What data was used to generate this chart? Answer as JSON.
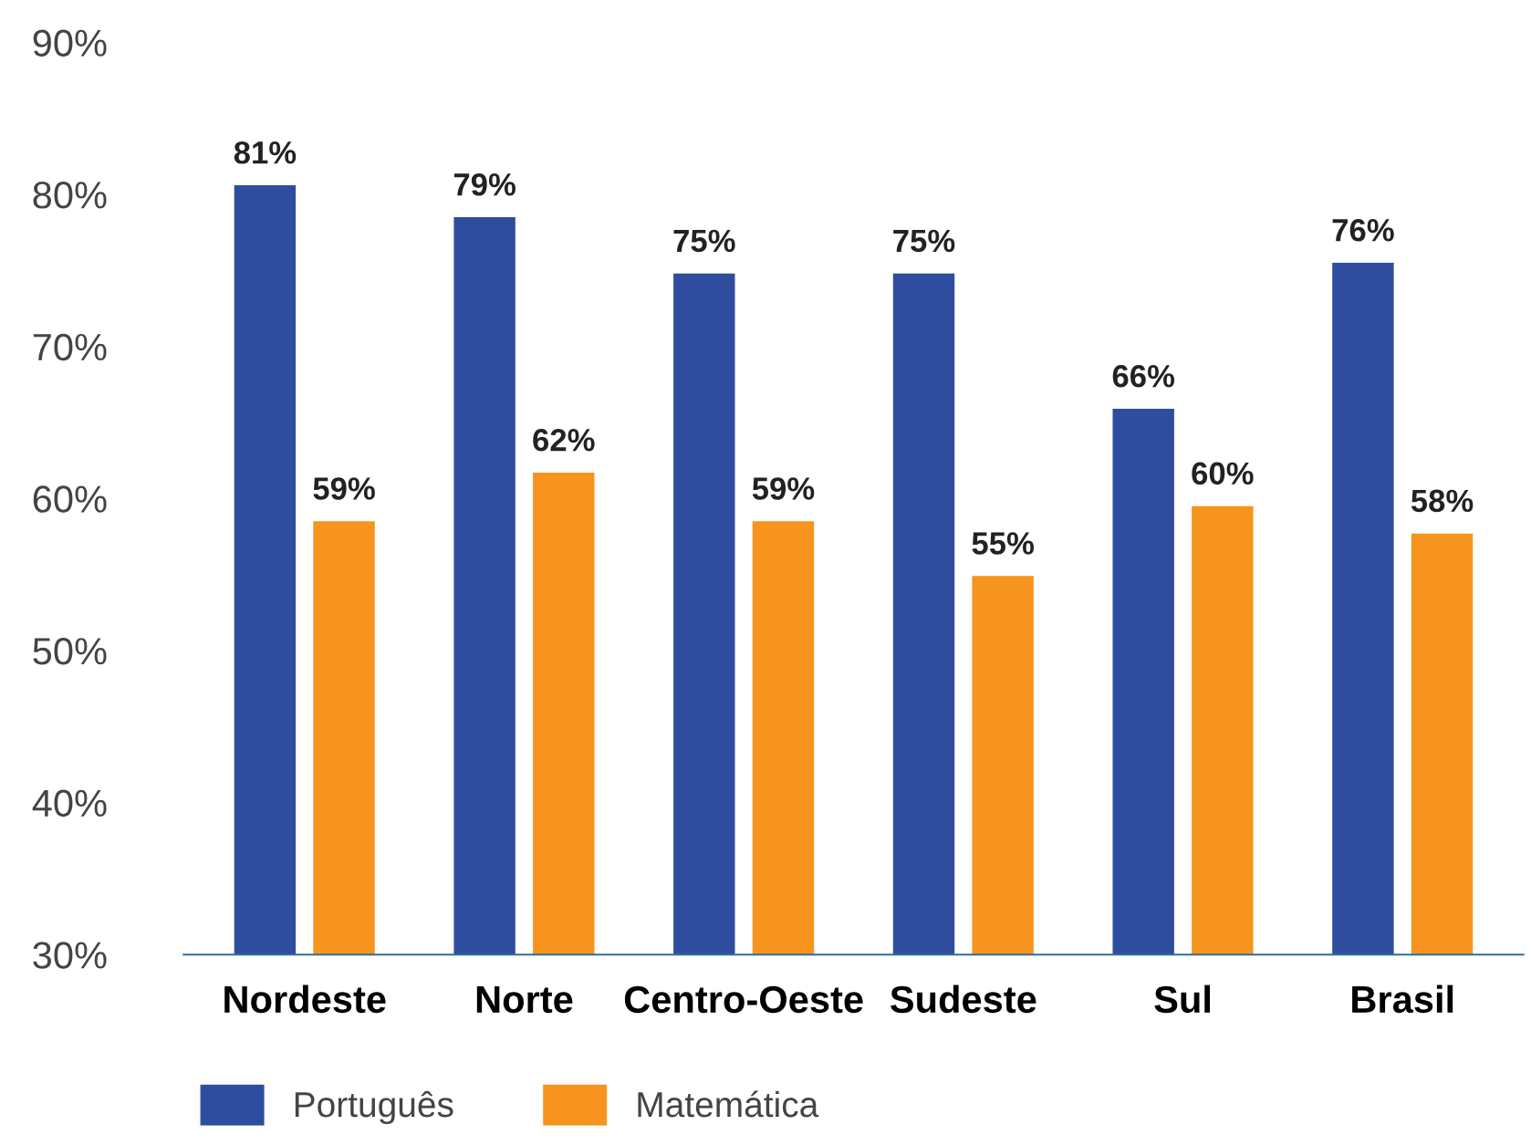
{
  "chart_data": {
    "type": "bar",
    "categories": [
      "Nordeste",
      "Norte",
      "Centro-Oeste",
      "Sudeste",
      "Sul",
      "Brasil"
    ],
    "series": [
      {
        "name": "Português",
        "color": "#2f4d9e",
        "values": [
          80.6,
          78.5,
          74.8,
          74.8,
          65.9,
          75.5
        ],
        "value_labels": [
          "81%",
          "79%",
          "75%",
          "75%",
          "66%",
          "76%"
        ]
      },
      {
        "name": "Matemática",
        "color": "#f7941d",
        "values": [
          58.5,
          61.7,
          58.5,
          54.9,
          59.5,
          57.7
        ],
        "value_labels": [
          "59%",
          "62%",
          "59%",
          "55%",
          "60%",
          "58%"
        ]
      }
    ],
    "ylim": [
      30,
      90
    ],
    "yticks": [
      {
        "value": 30,
        "label": "30%"
      },
      {
        "value": 40,
        "label": "40%"
      },
      {
        "value": 50,
        "label": "50%"
      },
      {
        "value": 60,
        "label": "60%"
      },
      {
        "value": 70,
        "label": "70%"
      },
      {
        "value": 80,
        "label": "80%"
      },
      {
        "value": 90,
        "label": "90%"
      }
    ],
    "grid": false,
    "legend": "bottom left"
  }
}
